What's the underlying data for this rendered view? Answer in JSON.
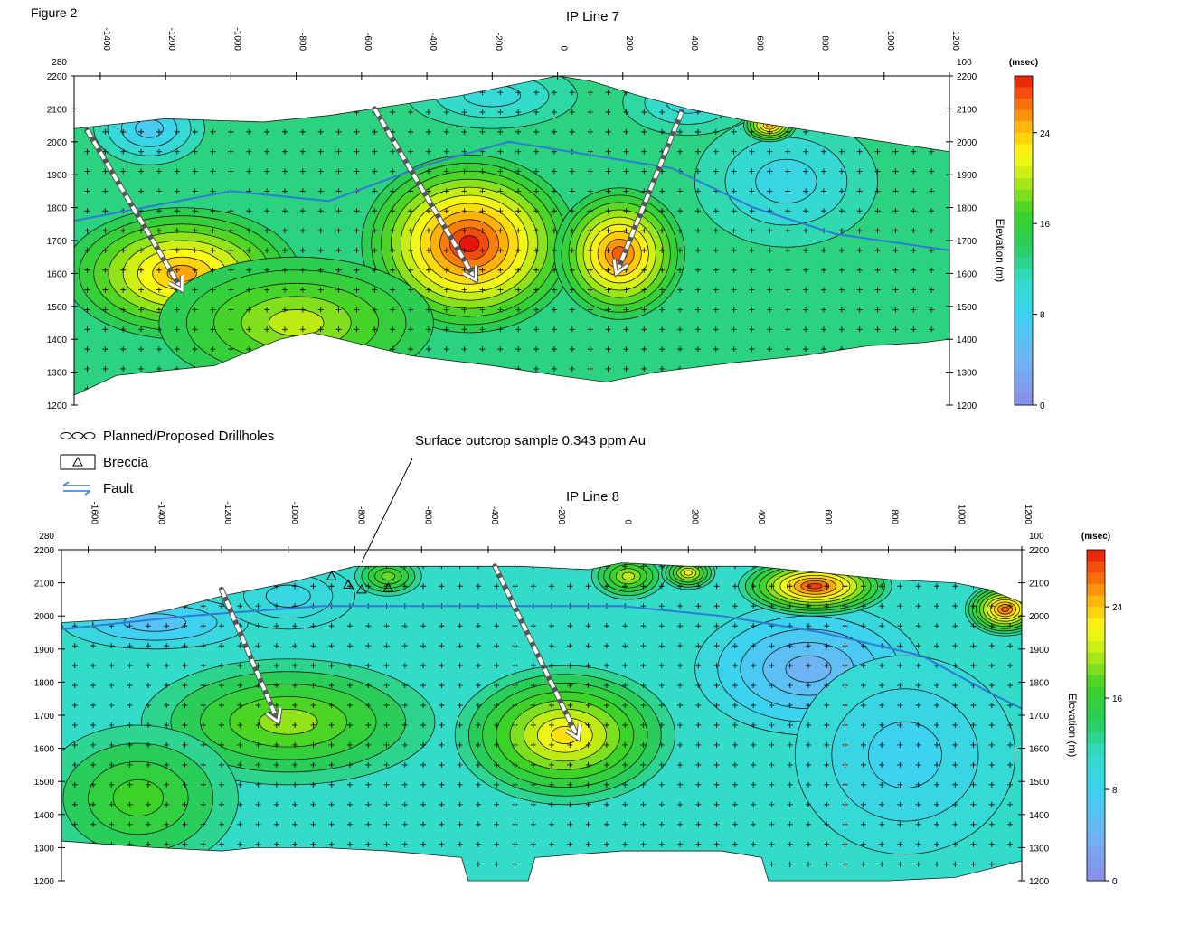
{
  "figure_label": "Figure 2",
  "legend": {
    "drillholes": "Planned/Proposed Drillholes",
    "breccia": "Breccia",
    "fault": "Fault"
  },
  "annotation": "Surface outcrop sample 0.343 ppm Au",
  "chart_data": [
    {
      "type": "heatmap",
      "title": "IP Line 7",
      "ylabel": "Elevation  (m)",
      "colorbar_unit": "(msec)",
      "colorbar_ticks": [
        "0",
        "8",
        "16",
        "24"
      ],
      "colorbar_range": [
        0,
        29
      ],
      "x_ticks": [
        "-1400",
        "-1200",
        "-1000",
        "-800",
        "-600",
        "-400",
        "-200",
        "0",
        "200",
        "400",
        "600",
        "800",
        "1000",
        "1200"
      ],
      "xlim": [
        -1480,
        1200
      ],
      "corner_left": "280",
      "corner_right": "100",
      "y_ticks": [
        "2200",
        "2100",
        "2000",
        "1900",
        "1800",
        "1700",
        "1600",
        "1500",
        "1400",
        "1300",
        "1200"
      ],
      "ylim": [
        1200,
        2200
      ],
      "background": 13,
      "surface": [
        [
          -1480,
          2040
        ],
        [
          -1200,
          2070
        ],
        [
          -900,
          2060
        ],
        [
          -700,
          2080
        ],
        [
          -500,
          2110
        ],
        [
          -300,
          2140
        ],
        [
          -100,
          2180
        ],
        [
          0,
          2200
        ],
        [
          100,
          2185
        ],
        [
          250,
          2140
        ],
        [
          400,
          2100
        ],
        [
          600,
          2060
        ],
        [
          800,
          2030
        ],
        [
          1000,
          2000
        ],
        [
          1200,
          1970
        ]
      ],
      "base": [
        [
          -1480,
          1230
        ],
        [
          -1350,
          1290
        ],
        [
          -1150,
          1310
        ],
        [
          -1050,
          1320
        ],
        [
          -850,
          1400
        ],
        [
          -750,
          1420
        ],
        [
          -450,
          1350
        ],
        [
          -200,
          1320
        ],
        [
          0,
          1290
        ],
        [
          150,
          1270
        ],
        [
          300,
          1300
        ],
        [
          550,
          1330
        ],
        [
          750,
          1350
        ],
        [
          950,
          1380
        ],
        [
          1120,
          1390
        ],
        [
          1200,
          1400
        ]
      ],
      "anomalies": [
        {
          "x": -1150,
          "y": 1600,
          "rx": 360,
          "ry": 200,
          "peak": 25
        },
        {
          "x": -270,
          "y": 1690,
          "rx": 330,
          "ry": 270,
          "peak": 29
        },
        {
          "x": 190,
          "y": 1660,
          "rx": 200,
          "ry": 200,
          "peak": 27
        },
        {
          "x": -800,
          "y": 1450,
          "rx": 420,
          "ry": 200,
          "peak": 20
        },
        {
          "x": -1250,
          "y": 2040,
          "rx": 170,
          "ry": 110,
          "peak": 7
        },
        {
          "x": -200,
          "y": 2140,
          "rx": 260,
          "ry": 100,
          "peak": 10
        },
        {
          "x": 700,
          "y": 1880,
          "rx": 280,
          "ry": 200,
          "peak": 9
        },
        {
          "x": 650,
          "y": 2050,
          "rx": 80,
          "ry": 50,
          "peak": 25
        },
        {
          "x": 400,
          "y": 2120,
          "rx": 200,
          "ry": 100,
          "peak": 10
        }
      ],
      "fault": [
        [
          -1480,
          1760
        ],
        [
          -1000,
          1850
        ],
        [
          -700,
          1820
        ],
        [
          -400,
          1930
        ],
        [
          -150,
          2000
        ],
        [
          100,
          1960
        ],
        [
          350,
          1920
        ],
        [
          600,
          1800
        ],
        [
          850,
          1720
        ],
        [
          1200,
          1670
        ]
      ],
      "drillholes": [
        {
          "from": [
            -1440,
            2035
          ],
          "to": [
            -1150,
            1550
          ]
        },
        {
          "from": [
            -560,
            2100
          ],
          "to": [
            -250,
            1580
          ]
        },
        {
          "from": [
            380,
            2090
          ],
          "to": [
            180,
            1600
          ]
        }
      ],
      "breccia": []
    },
    {
      "type": "heatmap",
      "title": "IP Line 8",
      "ylabel": "Elevation  (m)",
      "colorbar_unit": "(msec)",
      "colorbar_ticks": [
        "0",
        "8",
        "16",
        "24"
      ],
      "colorbar_range": [
        0,
        29
      ],
      "x_ticks": [
        "-1600",
        "-1400",
        "-1200",
        "-1000",
        "-800",
        "-600",
        "-400",
        "-200",
        "0",
        "200",
        "400",
        "600",
        "800",
        "1000",
        "1200"
      ],
      "xlim": [
        -1680,
        1200
      ],
      "corner_left": "280",
      "corner_right": "100",
      "y_ticks": [
        "2200",
        "2100",
        "2000",
        "1900",
        "1800",
        "1700",
        "1600",
        "1500",
        "1400",
        "1300",
        "1200"
      ],
      "ylim": [
        1200,
        2200
      ],
      "background": 11,
      "surface": [
        [
          -1680,
          1980
        ],
        [
          -1500,
          1990
        ],
        [
          -1350,
          2020
        ],
        [
          -1200,
          2060
        ],
        [
          -1000,
          2100
        ],
        [
          -800,
          2150
        ],
        [
          -600,
          2150
        ],
        [
          -300,
          2150
        ],
        [
          -100,
          2140
        ],
        [
          0,
          2160
        ],
        [
          200,
          2150
        ],
        [
          400,
          2150
        ],
        [
          600,
          2130
        ],
        [
          800,
          2110
        ],
        [
          1000,
          2100
        ],
        [
          1100,
          2080
        ],
        [
          1200,
          2040
        ]
      ],
      "base": [
        [
          -1680,
          1320
        ],
        [
          -1400,
          1300
        ],
        [
          -1200,
          1290
        ],
        [
          -1100,
          1300
        ],
        [
          -900,
          1300
        ],
        [
          -700,
          1290
        ],
        [
          -480,
          1270
        ],
        [
          -460,
          1200
        ],
        [
          -280,
          1200
        ],
        [
          -260,
          1270
        ],
        [
          0,
          1290
        ],
        [
          300,
          1290
        ],
        [
          420,
          1270
        ],
        [
          440,
          1200
        ],
        [
          800,
          1200
        ],
        [
          1000,
          1210
        ],
        [
          1200,
          1260
        ]
      ],
      "anomalies": [
        {
          "x": -1000,
          "y": 1680,
          "rx": 440,
          "ry": 190,
          "peak": 19
        },
        {
          "x": -170,
          "y": 1640,
          "rx": 330,
          "ry": 210,
          "peak": 23
        },
        {
          "x": -1450,
          "y": 1450,
          "rx": 300,
          "ry": 220,
          "peak": 17
        },
        {
          "x": 560,
          "y": 1840,
          "rx": 340,
          "ry": 200,
          "peak": 4
        },
        {
          "x": 850,
          "y": 1580,
          "rx": 330,
          "ry": 300,
          "peak": 8
        },
        {
          "x": 580,
          "y": 2090,
          "rx": 230,
          "ry": 90,
          "peak": 28
        },
        {
          "x": 1150,
          "y": 2020,
          "rx": 120,
          "ry": 80,
          "peak": 27
        },
        {
          "x": -1400,
          "y": 1980,
          "rx": 280,
          "ry": 80,
          "peak": 6
        },
        {
          "x": -1000,
          "y": 2060,
          "rx": 200,
          "ry": 100,
          "peak": 9
        },
        {
          "x": -700,
          "y": 2120,
          "rx": 100,
          "ry": 60,
          "peak": 18
        },
        {
          "x": 20,
          "y": 2120,
          "rx": 110,
          "ry": 70,
          "peak": 20
        },
        {
          "x": 200,
          "y": 2130,
          "rx": 80,
          "ry": 50,
          "peak": 22
        }
      ],
      "fault": [
        [
          -1680,
          1960
        ],
        [
          -1300,
          2000
        ],
        [
          -900,
          2030
        ],
        [
          -500,
          2030
        ],
        [
          0,
          2030
        ],
        [
          300,
          2000
        ],
        [
          600,
          1950
        ],
        [
          900,
          1880
        ],
        [
          1100,
          1770
        ],
        [
          1200,
          1720
        ]
      ],
      "drillholes": [
        {
          "from": [
            -1200,
            2080
          ],
          "to": [
            -1030,
            1680
          ]
        },
        {
          "from": [
            -380,
            2150
          ],
          "to": [
            -130,
            1630
          ]
        }
      ],
      "breccia": [
        [
          -870,
          2120
        ],
        [
          -820,
          2095
        ],
        [
          -780,
          2080
        ],
        [
          -700,
          2085
        ]
      ]
    }
  ]
}
